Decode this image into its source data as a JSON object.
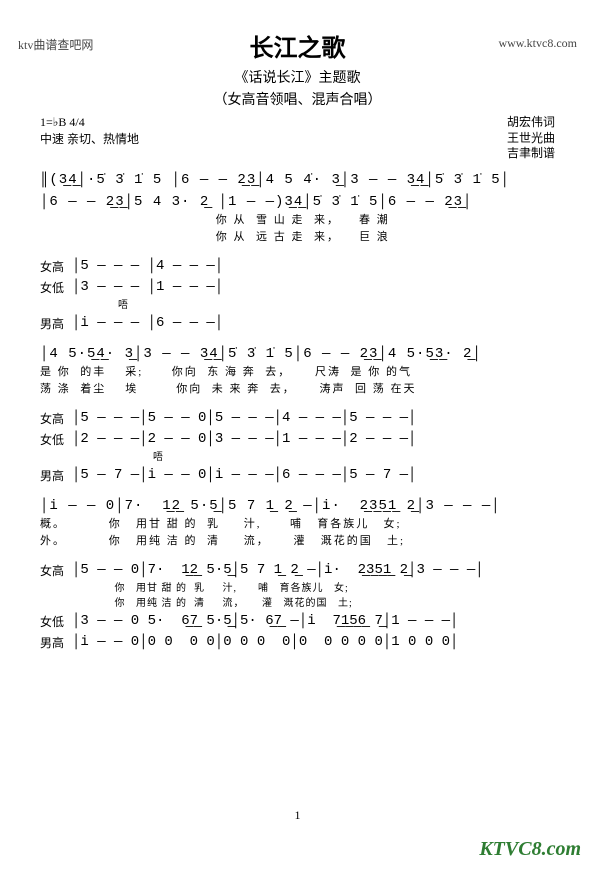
{
  "header": {
    "left": "ktv曲谱查吧网",
    "right": "www.ktvc8.com"
  },
  "title": "长江之歌",
  "subtitle": "《话说长江》主题歌",
  "subtitle2": "（女高音领唱、混声合唱）",
  "key": "1=♭B  4/4",
  "tempo": "中速 亲切、热情地",
  "credits": [
    "胡宏伟词",
    "王世光曲",
    "吉聿制谱"
  ],
  "intro_lines": [
    "║(3̲4̲│·5̇ 3̇ 1̇ 5 │6 — — 2̲3̲│4 5 4̇· 3̲│3 — — 3̲4̲│5̇ 3̇ 1̇ 5│",
    "│6 — — 2̲3̲│5 4 3· 2̲ │1 — —)3̲4̲│5̇ 3̇ 1̇ 5│6 — — 2̲3̲│"
  ],
  "intro_lyrics": [
    "                                     你 从  雪 山 走  来，    春 潮",
    "                                     你 从  远 古 走  来，    巨 浪"
  ],
  "parts": {
    "sg": "女高",
    "al": "女低",
    "tn": "男高"
  },
  "block1": {
    "sg": "│5 — — — │4 — — —│",
    "al": "│3 — — — │1 — — —│",
    "al_lyric": "            唔",
    "tn": "│i — — — │6 — — —│"
  },
  "main2": "│4 5·5̲4̲· 3̲│3 — — 3̲4̲│5̇ 3̇ 1̇ 5│6 — — 2̲3̲│4 5·5̲3̲· 2̲│",
  "main2_lyrics": [
    "是 你  的丰    采;      你向  东 海 奔  去，     尺涛  是 你 的气",
    "荡 涤  着尘    埃        你向  未 来 奔  去，     涛声  回 荡 在天"
  ],
  "block2": {
    "sg": "│5 — — —│5 — — 0│5 — — —│4 — — —│5 — — —│",
    "al": "│2 — — —│2 — — 0│3 — — —│1 — — —│2 — — —│",
    "al_lyric": "                      唔",
    "tn": "│5 — 7 —│i — — 0│i — — —│6 — — —│5 — 7 —│"
  },
  "main3": "│i — — 0│7·  1̲2̲ 5·5̲│5 7 1̲ 2̲ —│i·  2̲3̲5̲1̲ 2̲│3 — — —│",
  "main3_lyrics": [
    "概。         你   用甘 甜 的  乳     汁,      哺   育各族儿   女;",
    "外。         你   用纯 洁 的  清     流，     灌   溉花的国   土;"
  ],
  "block3": {
    "sg": "│5 — — 0│7·  1̲2̲ 5·5̲│5 7 1̲ 2̲ —│i·  2̲3̲5̲1̲ 2̲│3 — — —│",
    "sg_lyric1": "           你   用甘 甜 的  乳     汁,      哺   育各族儿   女;",
    "sg_lyric2": "           你   用纯 洁 的  清     流，     灌   溉花的国   土;",
    "al": "│3 — — 0 5·  6̲7̲ 5·5̲│5· 6̲7̲ —│i  7̲1̲5̲6̲ 7̲│1 — — —│",
    "tn": "│i — — 0│0 0  0 0│0 0 0  0│0  0 0 0 0│1 0 0 0│"
  },
  "pagenum": "1",
  "footer": "KTVC8.com"
}
